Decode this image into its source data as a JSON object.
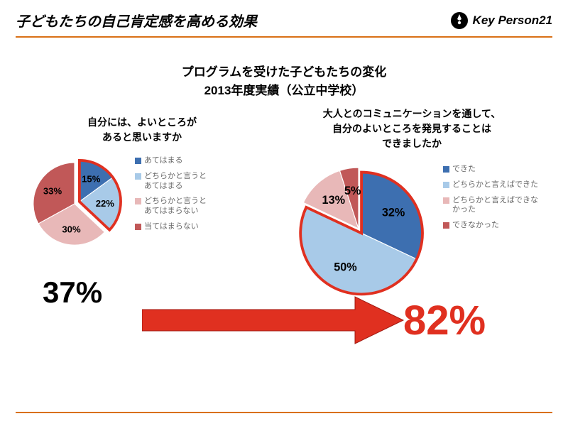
{
  "header": {
    "title": "子どもたちの自己肯定感を高める効果",
    "logo_text": "Key Person21"
  },
  "subtitle_line1": "プログラムを受けた子どもたちの変化",
  "subtitle_line2": "2013年度実績（公立中学校）",
  "colors": {
    "rule": "#d97016",
    "slice1": "#3d6fb0",
    "slice2": "#a8cae8",
    "slice3": "#e8b8b8",
    "slice4": "#c15858",
    "highlight_border": "#e03020",
    "arrow": "#e03020",
    "big_left": "#000000",
    "big_right": "#e03020",
    "legend_text": "#6a6a6a"
  },
  "chart_left": {
    "type": "pie",
    "question_line1": "自分には、よいところが",
    "question_line2": "あると思いますか",
    "diameter": 140,
    "slices": [
      {
        "label": "あてはまる",
        "value": 15,
        "color": "#3d6fb0",
        "text": "15%"
      },
      {
        "label": "どちらかと言うとあてはまる",
        "value": 22,
        "color": "#a8cae8",
        "text": "22%"
      },
      {
        "label": "どちらかと言うとあてはまらない",
        "value": 30,
        "color": "#e8b8b8",
        "text": "30%"
      },
      {
        "label": "当てはまらない",
        "value": 33,
        "color": "#c15858",
        "text": "33%"
      }
    ],
    "highlight_indices": [
      0,
      1
    ],
    "legend": [
      "あてはまる",
      "どちらかと言うと\nあてはまる",
      "どちらかと言うと\nあてはまらない",
      "当てはまらない"
    ],
    "big_value": "37%",
    "big_fontsize": 42
  },
  "chart_right": {
    "type": "pie",
    "question_line1": "大人とのコミュニケーションを通して、",
    "question_line2": "自分のよいところを発見することは",
    "question_line3": "できましたか",
    "diameter": 190,
    "slices": [
      {
        "label": "できた",
        "value": 32,
        "color": "#3d6fb0",
        "text": "32%"
      },
      {
        "label": "どちらかと言えばできた",
        "value": 50,
        "color": "#a8cae8",
        "text": "50%"
      },
      {
        "label": "どちらかと言えばできなかった",
        "value": 13,
        "color": "#e8b8b8",
        "text": "13%"
      },
      {
        "label": "できなかった",
        "value": 5,
        "color": "#c15858",
        "text": "5%"
      }
    ],
    "highlight_indices": [
      0,
      1
    ],
    "legend": [
      "できた",
      "どちらかと言えばできた",
      "どちらかと言えばできな\nかった",
      "できなかった"
    ],
    "big_value": "82%",
    "big_fontsize": 58
  }
}
